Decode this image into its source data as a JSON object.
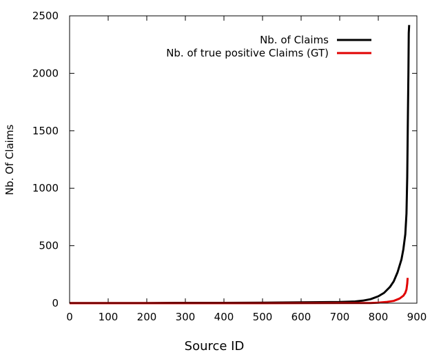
{
  "chart_data": {
    "type": "line",
    "title": "",
    "xlabel": "Source ID",
    "ylabel": "Nb. Of Claims",
    "xlim": [
      0,
      900
    ],
    "ylim": [
      0,
      2500
    ],
    "xticks": [
      "0",
      "100",
      "200",
      "300",
      "400",
      "500",
      "600",
      "700",
      "800",
      "900"
    ],
    "yticks": [
      "0",
      "500",
      "1000",
      "1500",
      "2000",
      "2500"
    ],
    "legend_position": "top-right",
    "grid": false,
    "series": [
      {
        "name": "Nb. of Claims",
        "color": "#000000",
        "points": [
          [
            0,
            2
          ],
          [
            100,
            2
          ],
          [
            200,
            2
          ],
          [
            300,
            3
          ],
          [
            400,
            3
          ],
          [
            500,
            5
          ],
          [
            600,
            7
          ],
          [
            700,
            10
          ],
          [
            740,
            15
          ],
          [
            760,
            22
          ],
          [
            780,
            35
          ],
          [
            800,
            60
          ],
          [
            815,
            90
          ],
          [
            830,
            140
          ],
          [
            840,
            190
          ],
          [
            850,
            270
          ],
          [
            860,
            380
          ],
          [
            865,
            470
          ],
          [
            870,
            600
          ],
          [
            873,
            780
          ],
          [
            875,
            1100
          ],
          [
            877,
            1700
          ],
          [
            878,
            2000
          ],
          [
            879,
            2350
          ],
          [
            880,
            2420
          ]
        ]
      },
      {
        "name": "Nb. of true positive Claims (GT)",
        "color": "#e00000",
        "points": [
          [
            0,
            0
          ],
          [
            500,
            0
          ],
          [
            700,
            1
          ],
          [
            780,
            2
          ],
          [
            800,
            5
          ],
          [
            820,
            10
          ],
          [
            840,
            20
          ],
          [
            855,
            40
          ],
          [
            865,
            65
          ],
          [
            870,
            90
          ],
          [
            873,
            120
          ],
          [
            875,
            170
          ],
          [
            876,
            220
          ]
        ]
      }
    ]
  }
}
